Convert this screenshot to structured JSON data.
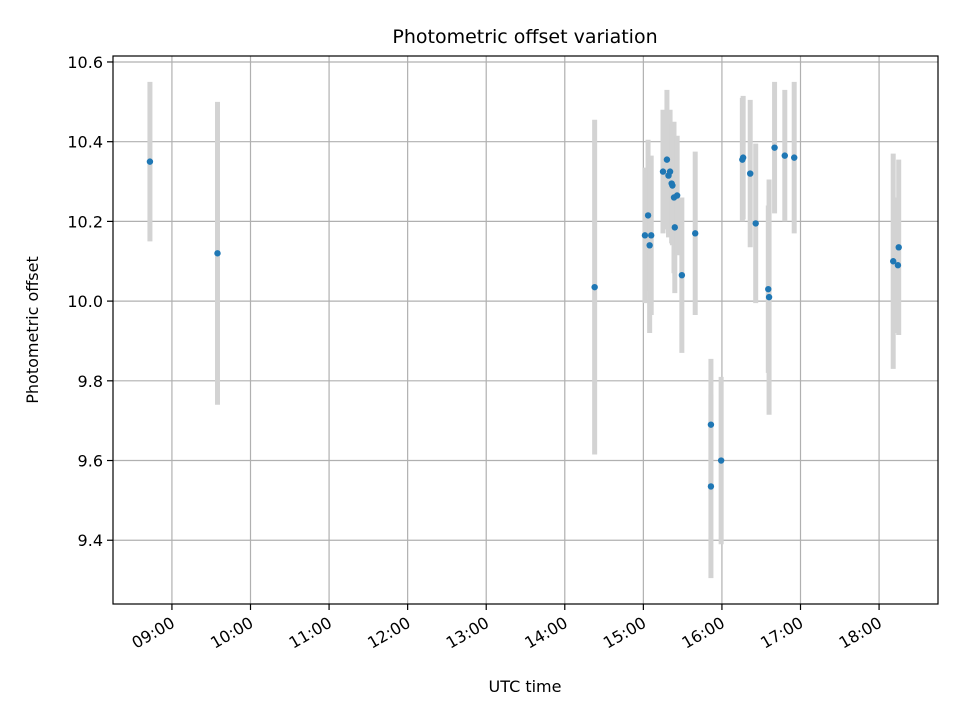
{
  "chart_data": {
    "type": "scatter",
    "title": "Photometric offset variation",
    "xlabel": "UTC time",
    "ylabel": "Photometric offset",
    "x_unit": "hours UTC",
    "xlim": [
      8.25,
      18.75
    ],
    "ylim": [
      9.24,
      10.615
    ],
    "x_ticks": [
      {
        "value": 9,
        "label": "09:00"
      },
      {
        "value": 10,
        "label": "10:00"
      },
      {
        "value": 11,
        "label": "11:00"
      },
      {
        "value": 12,
        "label": "12:00"
      },
      {
        "value": 13,
        "label": "13:00"
      },
      {
        "value": 14,
        "label": "14:00"
      },
      {
        "value": 15,
        "label": "15:00"
      },
      {
        "value": 16,
        "label": "16:00"
      },
      {
        "value": 17,
        "label": "17:00"
      },
      {
        "value": 18,
        "label": "18:00"
      }
    ],
    "y_ticks": [
      {
        "value": 9.4,
        "label": "9.4"
      },
      {
        "value": 9.6,
        "label": "9.6"
      },
      {
        "value": 9.8,
        "label": "9.8"
      },
      {
        "value": 10.0,
        "label": "10.0"
      },
      {
        "value": 10.2,
        "label": "10.2"
      },
      {
        "value": 10.4,
        "label": "10.4"
      },
      {
        "value": 10.6,
        "label": "10.6"
      }
    ],
    "grid": true,
    "point_color": "#1f77b4",
    "errorbar_color": "#d3d3d3",
    "points": [
      {
        "x": 8.72,
        "y": 10.35,
        "err": 0.2
      },
      {
        "x": 9.58,
        "y": 10.12,
        "err": 0.38
      },
      {
        "x": 14.38,
        "y": 10.035,
        "err": 0.42
      },
      {
        "x": 15.02,
        "y": 10.165,
        "err": 0.17
      },
      {
        "x": 15.06,
        "y": 10.215,
        "err": 0.19
      },
      {
        "x": 15.08,
        "y": 10.14,
        "err": 0.22
      },
      {
        "x": 15.1,
        "y": 10.165,
        "err": 0.2
      },
      {
        "x": 15.25,
        "y": 10.325,
        "err": 0.155
      },
      {
        "x": 15.3,
        "y": 10.355,
        "err": 0.175
      },
      {
        "x": 15.32,
        "y": 10.315,
        "err": 0.155
      },
      {
        "x": 15.34,
        "y": 10.325,
        "err": 0.155
      },
      {
        "x": 15.36,
        "y": 10.295,
        "err": 0.15
      },
      {
        "x": 15.37,
        "y": 10.29,
        "err": 0.15
      },
      {
        "x": 15.39,
        "y": 10.26,
        "err": 0.19
      },
      {
        "x": 15.4,
        "y": 10.185,
        "err": 0.165
      },
      {
        "x": 15.43,
        "y": 10.265,
        "err": 0.15
      },
      {
        "x": 15.49,
        "y": 10.065,
        "err": 0.195
      },
      {
        "x": 15.66,
        "y": 10.17,
        "err": 0.205
      },
      {
        "x": 15.86,
        "y": 9.69,
        "err": 0.165
      },
      {
        "x": 15.86,
        "y": 9.535,
        "err": 0.23
      },
      {
        "x": 15.99,
        "y": 9.6,
        "err": 0.21
      },
      {
        "x": 16.26,
        "y": 10.355,
        "err": 0.155
      },
      {
        "x": 16.27,
        "y": 10.36,
        "err": 0.155
      },
      {
        "x": 16.36,
        "y": 10.32,
        "err": 0.185
      },
      {
        "x": 16.43,
        "y": 10.195,
        "err": 0.2
      },
      {
        "x": 16.59,
        "y": 10.03,
        "err": 0.21
      },
      {
        "x": 16.6,
        "y": 10.01,
        "err": 0.295
      },
      {
        "x": 16.67,
        "y": 10.385,
        "err": 0.165
      },
      {
        "x": 16.8,
        "y": 10.365,
        "err": 0.165
      },
      {
        "x": 16.92,
        "y": 10.36,
        "err": 0.19
      },
      {
        "x": 18.18,
        "y": 10.1,
        "err": 0.27
      },
      {
        "x": 18.24,
        "y": 10.09,
        "err": 0.17
      },
      {
        "x": 18.25,
        "y": 10.135,
        "err": 0.22
      }
    ]
  }
}
